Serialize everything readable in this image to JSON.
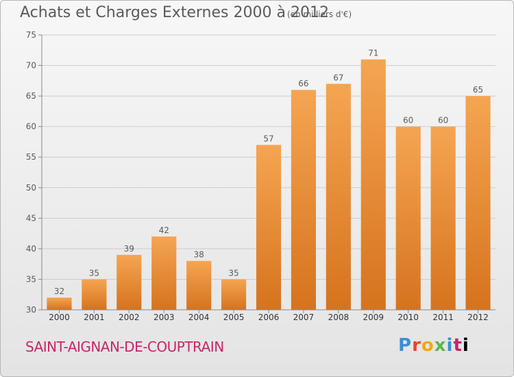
{
  "header": {
    "title": "Achats et Charges Externes 2000 à 2012",
    "unit": "(en milliers d'€)"
  },
  "footer": {
    "place": "SAINT-AIGNAN-DE-COUPTRAIN",
    "brand_letters": [
      "P",
      "r",
      "o",
      "x",
      "i",
      "t",
      "i"
    ]
  },
  "colors": {
    "bar_top": "#f5a552",
    "bar_bottom": "#d6731d",
    "grid": "#cccccc",
    "text": "#5a5a5a"
  },
  "chart_data": {
    "type": "bar",
    "title": "Achats et Charges Externes 2000 à 2012",
    "subtitle": "(en milliers d'€)",
    "categories": [
      "2000",
      "2001",
      "2002",
      "2003",
      "2004",
      "2005",
      "2006",
      "2007",
      "2008",
      "2009",
      "2010",
      "2011",
      "2012"
    ],
    "values": [
      32,
      35,
      39,
      42,
      38,
      35,
      57,
      66,
      67,
      71,
      60,
      60,
      65
    ],
    "ylim": [
      30,
      75
    ],
    "yticks": [
      30,
      35,
      40,
      45,
      50,
      55,
      60,
      65,
      70,
      75
    ],
    "grid": true
  }
}
